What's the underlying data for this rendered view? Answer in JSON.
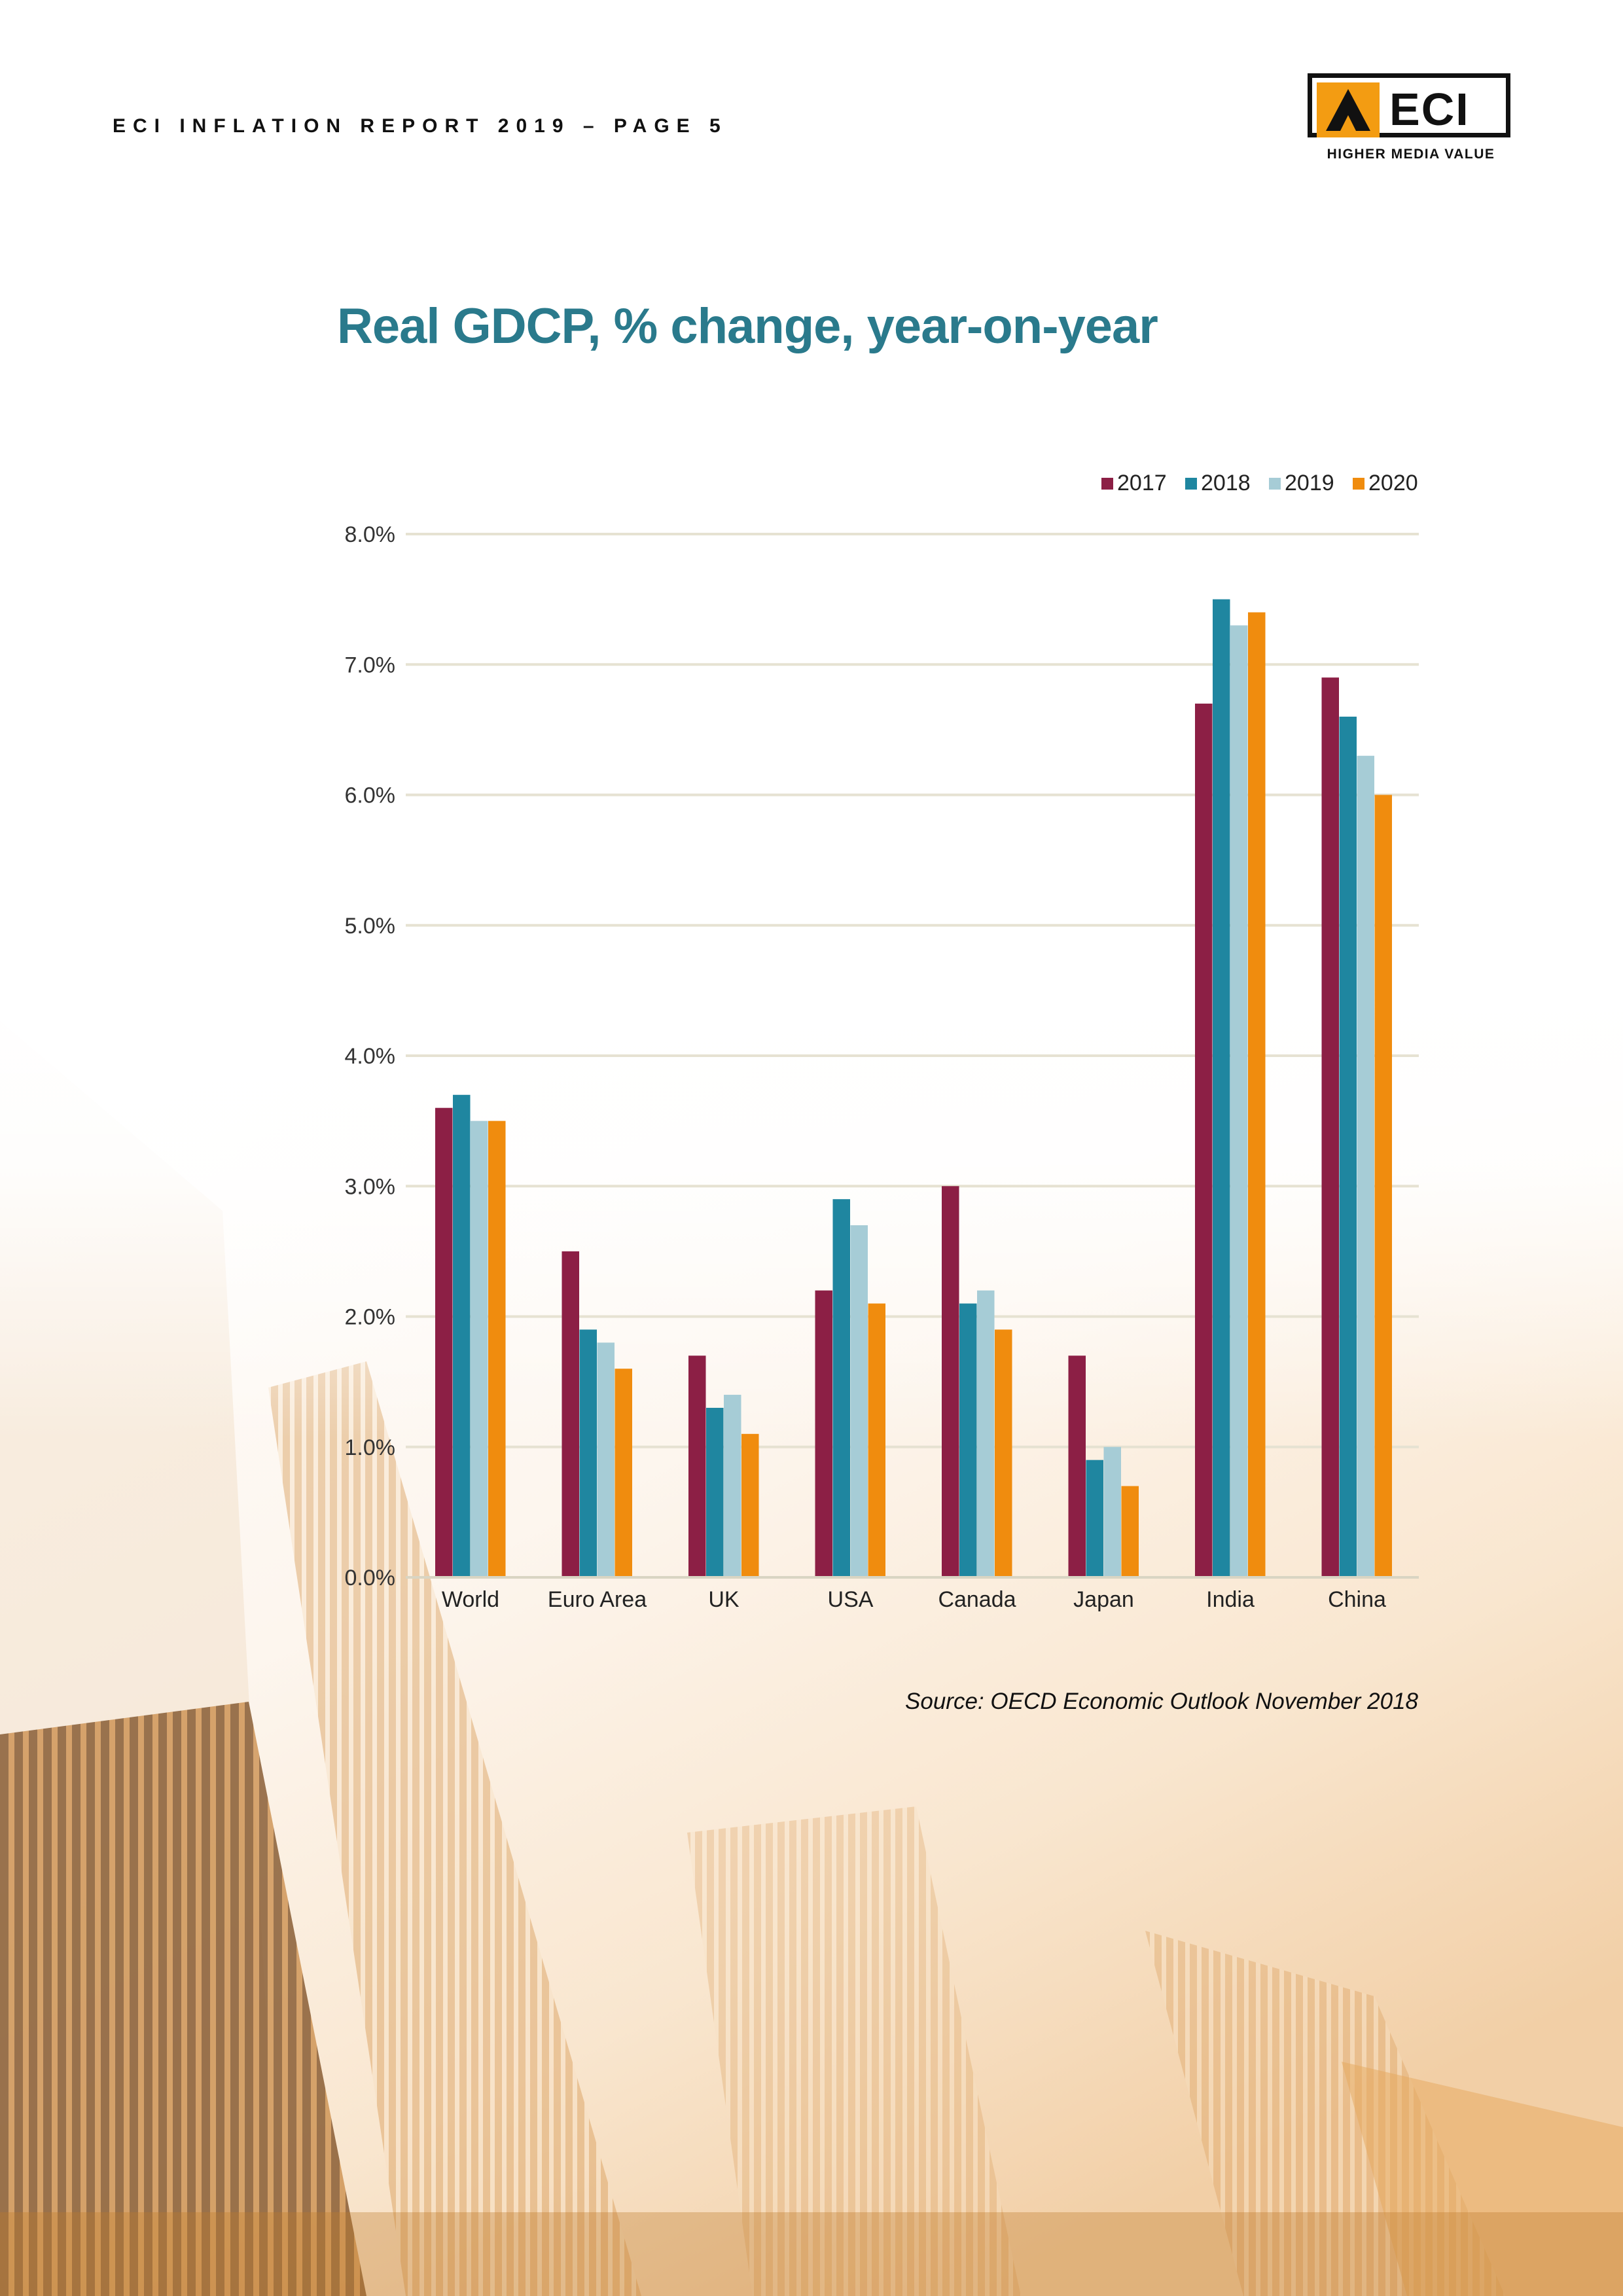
{
  "header": {
    "report_label": "ECI INFLATION REPORT 2019 – PAGE 5"
  },
  "logo": {
    "wordmark": "ECI",
    "tagline": "HIGHER MEDIA VALUE"
  },
  "colors": {
    "title": "#2a7a8c",
    "s2017": "#8c1f45",
    "s2018": "#1f86a0",
    "s2019": "#a6ccd6",
    "s2020": "#f08c0e",
    "gridline": "#e6e2d2"
  },
  "chart_data": {
    "type": "bar",
    "title": "Real GDCP, % change, year-on-year",
    "xlabel": "",
    "ylabel": "",
    "categories": [
      "World",
      "Euro Area",
      "UK",
      "USA",
      "Canada",
      "Japan",
      "India",
      "China"
    ],
    "series": [
      {
        "name": "2017",
        "values": [
          3.6,
          2.5,
          1.7,
          2.2,
          3.0,
          1.7,
          6.7,
          6.9
        ]
      },
      {
        "name": "2018",
        "values": [
          3.7,
          1.9,
          1.3,
          2.9,
          2.1,
          0.9,
          7.5,
          6.6
        ]
      },
      {
        "name": "2019",
        "values": [
          3.5,
          1.8,
          1.4,
          2.7,
          2.2,
          1.0,
          7.3,
          6.3
        ]
      },
      {
        "name": "2020",
        "values": [
          3.5,
          1.6,
          1.1,
          2.1,
          1.9,
          0.7,
          7.4,
          6.0
        ]
      }
    ],
    "ylim": [
      0,
      8
    ],
    "yticks": [
      0,
      1,
      2,
      3,
      4,
      5,
      6,
      7,
      8
    ],
    "ytick_labels": [
      "0.0%",
      "1.0%",
      "2.0%",
      "3.0%",
      "4.0%",
      "5.0%",
      "6.0%",
      "7.0%",
      "8.0%"
    ],
    "grid": true,
    "legend_position": "top-right"
  },
  "source_note": "Source: OECD Economic Outlook November 2018"
}
